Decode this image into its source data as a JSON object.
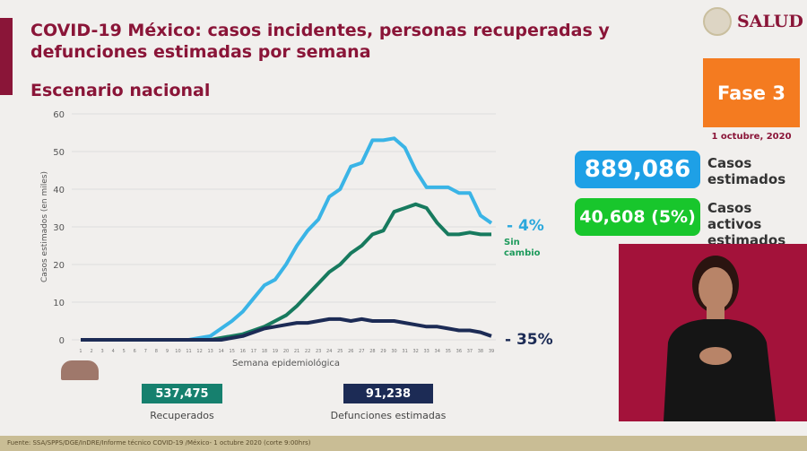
{
  "header": {
    "title": "COVID-19 México: casos incidentes, personas recuperadas y defunciones estimadas por semana",
    "subtitle": "Escenario nacional",
    "logo_text": "SALUD",
    "phase": "Fase 3",
    "date": "1 octubre, 2020"
  },
  "stats": {
    "casos_value": "889,086",
    "casos_label_1": "Casos",
    "casos_label_2": "estimados",
    "activos_value": "40,608 (5%)",
    "activos_label_1": "Casos activos",
    "activos_label_2": "estimados"
  },
  "annotations": {
    "casos_change": "- 4%",
    "recuperados_change": "Sin cambio",
    "defunciones_change": "- 35%"
  },
  "totals": {
    "recuperados_value": "537,475",
    "recuperados_label": "Recuperados",
    "defunciones_value": "91,238",
    "defunciones_label": "Defunciones estimadas"
  },
  "footer": "Fuente: SSA/SPPS/DGE/InDRE/Informe técnico COVID-19 /México- 1 octubre 2020 (corte 9:00hrs)",
  "colors": {
    "casos": "#3ab4e6",
    "recuperados": "#177a5e",
    "defunciones": "#1c2b55",
    "brand": "#8a1538"
  },
  "chart_data": {
    "type": "line",
    "xlabel": "Semana epidemiológica",
    "ylabel": "Casos estimados (en miles)",
    "ylim": [
      0,
      60
    ],
    "yticks": [
      0,
      10,
      20,
      30,
      40,
      50,
      60
    ],
    "grid": true,
    "x": [
      1,
      2,
      3,
      4,
      5,
      6,
      7,
      8,
      9,
      10,
      11,
      12,
      13,
      14,
      15,
      16,
      17,
      18,
      19,
      20,
      21,
      22,
      23,
      24,
      25,
      26,
      27,
      28,
      29,
      30,
      31,
      32,
      33,
      34,
      35,
      36,
      37,
      38,
      39
    ],
    "series": [
      {
        "key": "casos",
        "values": [
          0,
          0,
          0,
          0,
          0,
          0,
          0,
          0,
          0,
          0,
          0,
          0.5,
          1,
          3,
          5,
          7.5,
          11,
          14.5,
          16,
          20,
          25,
          29,
          32,
          38,
          40,
          46,
          47,
          53,
          53,
          53.5,
          51,
          45,
          40.5,
          40.5,
          40.5,
          39,
          39,
          33,
          31
        ]
      },
      {
        "key": "recuperados",
        "values": [
          0,
          0,
          0,
          0,
          0,
          0,
          0,
          0,
          0,
          0,
          0,
          0,
          0,
          0.5,
          1,
          1.5,
          2.5,
          3.5,
          5,
          6.5,
          9,
          12,
          15,
          18,
          20,
          23,
          25,
          28,
          29,
          34,
          35,
          36,
          35,
          31,
          28,
          28,
          28.5,
          28,
          28
        ]
      },
      {
        "key": "defunciones",
        "values": [
          0,
          0,
          0,
          0,
          0,
          0,
          0,
          0,
          0,
          0,
          0,
          0,
          0,
          0,
          0.5,
          1,
          2,
          3,
          3.5,
          4,
          4.5,
          4.5,
          5,
          5.5,
          5.5,
          5,
          5.5,
          5,
          5,
          5,
          4.5,
          4,
          3.5,
          3.5,
          3,
          2.5,
          2.5,
          2,
          1
        ]
      }
    ]
  }
}
